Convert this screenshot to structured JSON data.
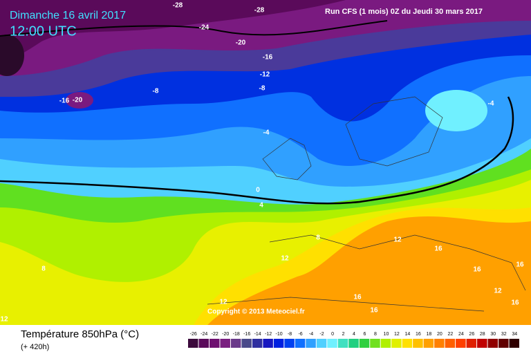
{
  "header": {
    "date": "Dimanche 16 avril 2017",
    "time": "12:00 UTC",
    "run": "Run CFS (1 mois) 0Z du Jeudi 30 mars 2017"
  },
  "map": {
    "contour_labels": [
      -28,
      -28,
      -24,
      -20,
      -16,
      -12,
      -8,
      -8,
      -16,
      -20,
      -4,
      -4,
      0,
      4,
      8,
      8,
      12,
      12,
      16,
      16,
      16,
      16,
      16,
      16,
      12,
      12,
      12
    ],
    "copyright": "Copyright © 2013 Meteociel.fr"
  },
  "footer": {
    "title": "Température 850hPa (°C)",
    "lead": "(+ 420h)"
  },
  "legend": {
    "ticks": [
      -26,
      -24,
      -22,
      -20,
      -18,
      -16,
      -14,
      -12,
      -10,
      -8,
      -6,
      -4,
      -2,
      0,
      2,
      4,
      6,
      8,
      10,
      12,
      14,
      16,
      18,
      20,
      22,
      24,
      26,
      28,
      30,
      32,
      34
    ],
    "colors": [
      "#3c0a3c",
      "#5a0a5a",
      "#6e1070",
      "#7a2080",
      "#6a3a8a",
      "#4a4a8a",
      "#3030a0",
      "#1818c0",
      "#0020e0",
      "#0040f0",
      "#1070ff",
      "#30a0ff",
      "#50d0ff",
      "#70f0ff",
      "#40e0c0",
      "#20d080",
      "#30d040",
      "#70e020",
      "#b0f000",
      "#e0f000",
      "#ffe000",
      "#ffc000",
      "#ffa000",
      "#ff8000",
      "#ff6000",
      "#ff4000",
      "#e02000",
      "#c00000",
      "#900000",
      "#600000",
      "#300000"
    ]
  }
}
